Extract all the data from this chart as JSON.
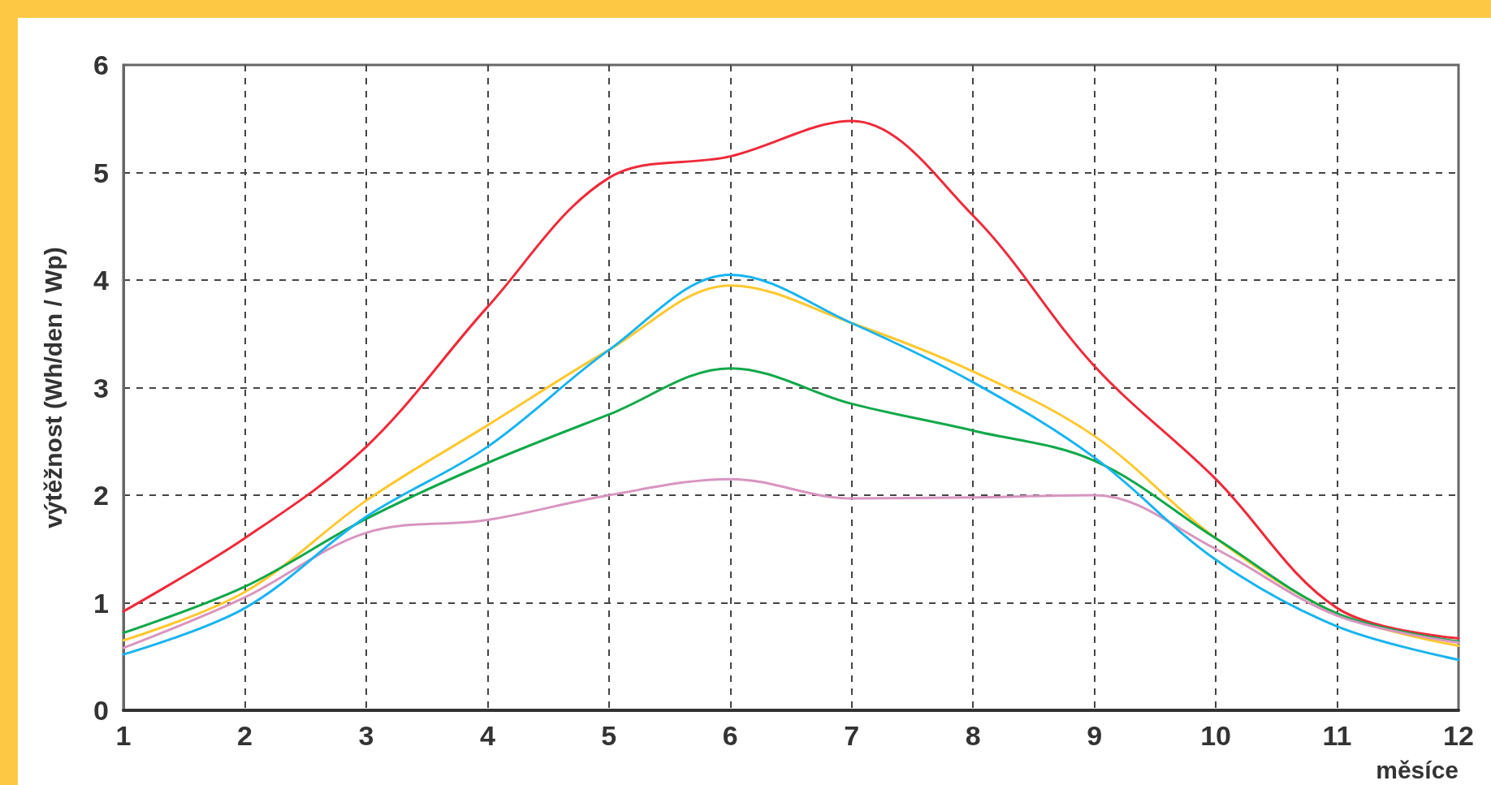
{
  "chart_data": {
    "type": "line",
    "xlabel": "měsíce",
    "ylabel": "výtěžnost (Wh/den / Wp)",
    "x": [
      1,
      2,
      3,
      4,
      5,
      6,
      7,
      8,
      9,
      10,
      11,
      12
    ],
    "xlim": [
      1,
      12
    ],
    "xticks": [
      1,
      2,
      3,
      4,
      5,
      6,
      7,
      8,
      9,
      10,
      11,
      12
    ],
    "ylim": [
      0,
      6
    ],
    "yticks": [
      0,
      1,
      2,
      3,
      4,
      5,
      6
    ],
    "grid": true,
    "marker": "none",
    "line_style": "solid",
    "series": [
      {
        "color": "#ee2a3a",
        "values": [
          0.92,
          1.6,
          2.45,
          3.75,
          4.95,
          5.15,
          5.48,
          4.6,
          3.2,
          2.15,
          0.95,
          0.67
        ]
      },
      {
        "color": "#fdc82f",
        "values": [
          0.65,
          1.1,
          1.95,
          2.65,
          3.35,
          3.95,
          3.6,
          3.15,
          2.55,
          1.6,
          0.9,
          0.6
        ]
      },
      {
        "color": "#10a84a",
        "values": [
          0.72,
          1.15,
          1.78,
          2.3,
          2.75,
          3.18,
          2.85,
          2.6,
          2.32,
          1.6,
          0.9,
          0.64
        ]
      },
      {
        "color": "#d895c0",
        "values": [
          0.58,
          1.05,
          1.65,
          1.77,
          2.0,
          2.15,
          1.97,
          1.98,
          2.0,
          1.5,
          0.88,
          0.63
        ]
      },
      {
        "color": "#18b4ee",
        "values": [
          0.52,
          0.95,
          1.8,
          2.45,
          3.35,
          4.05,
          3.6,
          3.05,
          2.35,
          1.4,
          0.78,
          0.47
        ]
      }
    ]
  }
}
